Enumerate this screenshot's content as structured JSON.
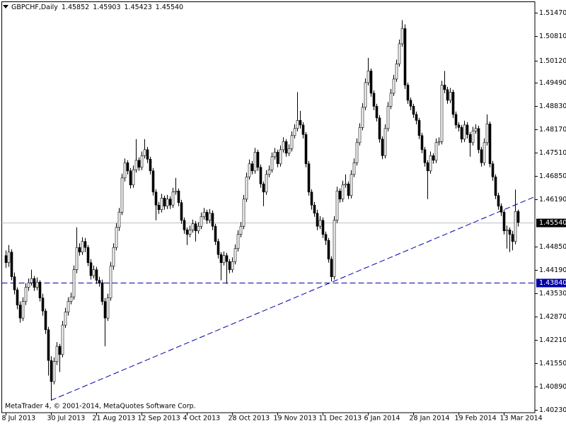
{
  "chart_data": {
    "type": "candlestick",
    "symbol": "GBPCHF,Daily",
    "last_value_labels": [
      "1.45852",
      "1.45903",
      "1.45423",
      "1.45540"
    ],
    "footer": "MetaTrader 4, © 2001-2014, MetaQuotes Software Corp.",
    "categories": [
      "8 Jul 2013",
      null,
      null,
      null,
      null,
      null,
      null,
      null,
      null,
      null,
      null,
      null,
      null,
      null,
      null,
      null,
      "30 Jul 2013",
      null,
      null,
      null,
      null,
      null,
      null,
      null,
      null,
      null,
      null,
      null,
      null,
      null,
      null,
      null,
      "21 Aug 2013",
      null,
      null,
      null,
      null,
      null,
      null,
      null,
      null,
      null,
      null,
      null,
      null,
      null,
      null,
      null,
      "12 Sep 2013",
      null,
      null,
      null,
      null,
      null,
      null,
      null,
      null,
      null,
      null,
      null,
      null,
      null,
      null,
      null,
      "4 Oct 2013",
      null,
      null,
      null,
      null,
      null,
      null,
      null,
      null,
      null,
      null,
      null,
      null,
      null,
      null,
      null,
      "28 Oct 2013",
      null,
      null,
      null,
      null,
      null,
      null,
      null,
      null,
      null,
      null,
      null,
      null,
      null,
      null,
      null,
      "19 Nov 2013",
      null,
      null,
      null,
      null,
      null,
      null,
      null,
      null,
      null,
      null,
      null,
      null,
      null,
      null,
      null,
      "11 Dec 2013",
      null,
      null,
      null,
      null,
      null,
      null,
      null,
      null,
      null,
      null,
      null,
      null,
      null,
      null,
      null,
      "6 Jan 2014",
      null,
      null,
      null,
      null,
      null,
      null,
      null,
      null,
      null,
      null,
      null,
      null,
      null,
      null,
      null,
      "28 Jan 2014",
      null,
      null,
      null,
      null,
      null,
      null,
      null,
      null,
      null,
      null,
      null,
      null,
      null,
      null,
      null,
      "19 Feb 2014",
      null,
      null,
      null,
      null,
      null,
      null,
      null,
      null,
      null,
      null,
      null,
      null,
      null,
      null,
      null,
      "13 Mar 2014",
      null,
      null,
      null,
      null,
      null
    ],
    "ohlc": [
      [
        1.446,
        1.4475,
        1.4425,
        1.444
      ],
      [
        1.444,
        1.449,
        1.4428,
        1.447
      ],
      [
        1.447,
        1.4478,
        1.439,
        1.44
      ],
      [
        1.44,
        1.4412,
        1.435,
        1.4363
      ],
      [
        1.4363,
        1.437,
        1.4308,
        1.432
      ],
      [
        1.432,
        1.433,
        1.427,
        1.4283
      ],
      [
        1.4283,
        1.4342,
        1.4275,
        1.433
      ],
      [
        1.433,
        1.4382,
        1.432,
        1.437
      ],
      [
        1.437,
        1.4395,
        1.436,
        1.4383
      ],
      [
        1.4383,
        1.442,
        1.4375,
        1.4395
      ],
      [
        1.4395,
        1.4402,
        1.436,
        1.437
      ],
      [
        1.437,
        1.4398,
        1.4362,
        1.4385
      ],
      [
        1.4385,
        1.439,
        1.433,
        1.434
      ],
      [
        1.434,
        1.4352,
        1.429,
        1.4303
      ],
      [
        1.4303,
        1.431,
        1.4238,
        1.425
      ],
      [
        1.425,
        1.4258,
        1.412,
        1.4163
      ],
      [
        1.4163,
        1.4175,
        1.405,
        1.4103
      ],
      [
        1.4103,
        1.4172,
        1.4095,
        1.416
      ],
      [
        1.416,
        1.4215,
        1.415,
        1.4203
      ],
      [
        1.4203,
        1.421,
        1.413,
        1.418
      ],
      [
        1.418,
        1.4275,
        1.4172,
        1.4263
      ],
      [
        1.4263,
        1.4312,
        1.4255,
        1.43
      ],
      [
        1.43,
        1.4342,
        1.429,
        1.433
      ],
      [
        1.433,
        1.4355,
        1.4322,
        1.4343
      ],
      [
        1.4343,
        1.4432,
        1.4335,
        1.442
      ],
      [
        1.442,
        1.454,
        1.441,
        1.4483
      ],
      [
        1.4483,
        1.4495,
        1.446,
        1.447
      ],
      [
        1.447,
        1.4512,
        1.4462,
        1.45
      ],
      [
        1.45,
        1.451,
        1.447,
        1.4483
      ],
      [
        1.4483,
        1.449,
        1.443,
        1.444
      ],
      [
        1.444,
        1.445,
        1.4392,
        1.4403
      ],
      [
        1.4403,
        1.4432,
        1.4395,
        1.442
      ],
      [
        1.442,
        1.4428,
        1.438,
        1.439
      ],
      [
        1.439,
        1.44,
        1.4372,
        1.4383
      ],
      [
        1.4383,
        1.4392,
        1.432,
        1.433
      ],
      [
        1.433,
        1.434,
        1.4203,
        1.4283
      ],
      [
        1.4283,
        1.4352,
        1.4275,
        1.434
      ],
      [
        1.434,
        1.4442,
        1.4332,
        1.443
      ],
      [
        1.443,
        1.4495,
        1.442,
        1.4483
      ],
      [
        1.4483,
        1.4552,
        1.4475,
        1.454
      ],
      [
        1.454,
        1.4595,
        1.453,
        1.4583
      ],
      [
        1.4583,
        1.4692,
        1.4575,
        1.468
      ],
      [
        1.468,
        1.4735,
        1.467,
        1.4723
      ],
      [
        1.4723,
        1.473,
        1.469,
        1.47
      ],
      [
        1.47,
        1.4708,
        1.465,
        1.466
      ],
      [
        1.466,
        1.4715,
        1.4652,
        1.4703
      ],
      [
        1.4703,
        1.479,
        1.4695,
        1.473
      ],
      [
        1.473,
        1.4738,
        1.47,
        1.471
      ],
      [
        1.471,
        1.4755,
        1.4702,
        1.4743
      ],
      [
        1.4743,
        1.479,
        1.4735,
        1.476
      ],
      [
        1.476,
        1.4768,
        1.4722,
        1.4733
      ],
      [
        1.4733,
        1.474,
        1.469,
        1.47
      ],
      [
        1.47,
        1.4708,
        1.463,
        1.464
      ],
      [
        1.464,
        1.4648,
        1.456,
        1.4603
      ],
      [
        1.4603,
        1.4612,
        1.4578,
        1.459
      ],
      [
        1.459,
        1.4635,
        1.4582,
        1.4623
      ],
      [
        1.4623,
        1.463,
        1.459,
        1.46
      ],
      [
        1.46,
        1.4632,
        1.4592,
        1.462
      ],
      [
        1.462,
        1.4628,
        1.4592,
        1.4603
      ],
      [
        1.4603,
        1.4652,
        1.4595,
        1.464
      ],
      [
        1.464,
        1.468,
        1.4632,
        1.4643
      ],
      [
        1.4643,
        1.465,
        1.46,
        1.461
      ],
      [
        1.461,
        1.4618,
        1.455,
        1.456
      ],
      [
        1.456,
        1.4568,
        1.4522,
        1.4533
      ],
      [
        1.4533,
        1.454,
        1.449,
        1.452
      ],
      [
        1.452,
        1.4545,
        1.4512,
        1.4533
      ],
      [
        1.4533,
        1.4562,
        1.4525,
        1.455
      ],
      [
        1.455,
        1.4558,
        1.45,
        1.453
      ],
      [
        1.453,
        1.4555,
        1.4522,
        1.4543
      ],
      [
        1.4543,
        1.4582,
        1.4535,
        1.457
      ],
      [
        1.457,
        1.4595,
        1.4562,
        1.4583
      ],
      [
        1.4583,
        1.459,
        1.455,
        1.456
      ],
      [
        1.456,
        1.4592,
        1.4552,
        1.458
      ],
      [
        1.458,
        1.4588,
        1.4532,
        1.4543
      ],
      [
        1.4543,
        1.455,
        1.449,
        1.45
      ],
      [
        1.45,
        1.4508,
        1.4452,
        1.4463
      ],
      [
        1.4463,
        1.447,
        1.439,
        1.444
      ],
      [
        1.444,
        1.4472,
        1.4432,
        1.446
      ],
      [
        1.446,
        1.4468,
        1.438,
        1.4443
      ],
      [
        1.4443,
        1.445,
        1.441,
        1.442
      ],
      [
        1.442,
        1.4455,
        1.4412,
        1.4443
      ],
      [
        1.4443,
        1.4492,
        1.4435,
        1.448
      ],
      [
        1.448,
        1.4532,
        1.4472,
        1.452
      ],
      [
        1.452,
        1.4555,
        1.4512,
        1.4543
      ],
      [
        1.4543,
        1.4632,
        1.4535,
        1.462
      ],
      [
        1.462,
        1.4695,
        1.4612,
        1.4683
      ],
      [
        1.4683,
        1.4732,
        1.4675,
        1.472
      ],
      [
        1.472,
        1.4728,
        1.469,
        1.47
      ],
      [
        1.47,
        1.4765,
        1.4692,
        1.4753
      ],
      [
        1.4753,
        1.476,
        1.47,
        1.471
      ],
      [
        1.471,
        1.4718,
        1.4652,
        1.4663
      ],
      [
        1.4663,
        1.467,
        1.46,
        1.464
      ],
      [
        1.464,
        1.4702,
        1.4632,
        1.469
      ],
      [
        1.469,
        1.4715,
        1.4682,
        1.4703
      ],
      [
        1.4703,
        1.4752,
        1.4695,
        1.474
      ],
      [
        1.474,
        1.4765,
        1.4732,
        1.4753
      ],
      [
        1.4753,
        1.476,
        1.471,
        1.472
      ],
      [
        1.472,
        1.4772,
        1.4712,
        1.476
      ],
      [
        1.476,
        1.4795,
        1.4752,
        1.4783
      ],
      [
        1.4783,
        1.479,
        1.474,
        1.475
      ],
      [
        1.475,
        1.4775,
        1.4742,
        1.4763
      ],
      [
        1.4763,
        1.4812,
        1.4755,
        1.48
      ],
      [
        1.48,
        1.4832,
        1.4792,
        1.482
      ],
      [
        1.482,
        1.4923,
        1.4812,
        1.4843
      ],
      [
        1.4843,
        1.487,
        1.482,
        1.483
      ],
      [
        1.483,
        1.4838,
        1.4792,
        1.4803
      ],
      [
        1.4803,
        1.481,
        1.471,
        1.472
      ],
      [
        1.472,
        1.4728,
        1.463,
        1.464
      ],
      [
        1.464,
        1.4648,
        1.459,
        1.4603
      ],
      [
        1.4603,
        1.4612,
        1.457,
        1.458
      ],
      [
        1.458,
        1.459,
        1.4532,
        1.4543
      ],
      [
        1.4543,
        1.4572,
        1.4535,
        1.456
      ],
      [
        1.456,
        1.4568,
        1.451,
        1.452
      ],
      [
        1.452,
        1.4528,
        1.449,
        1.4503
      ],
      [
        1.4503,
        1.451,
        1.444,
        1.445
      ],
      [
        1.445,
        1.4458,
        1.4387,
        1.44
      ],
      [
        1.44,
        1.4572,
        1.4392,
        1.456
      ],
      [
        1.456,
        1.4655,
        1.4552,
        1.4643
      ],
      [
        1.4643,
        1.465,
        1.461,
        1.462
      ],
      [
        1.462,
        1.4672,
        1.4612,
        1.466
      ],
      [
        1.466,
        1.469,
        1.4652,
        1.4663
      ],
      [
        1.4663,
        1.467,
        1.462,
        1.463
      ],
      [
        1.463,
        1.4702,
        1.4622,
        1.469
      ],
      [
        1.469,
        1.4735,
        1.4682,
        1.4723
      ],
      [
        1.4723,
        1.4792,
        1.4715,
        1.478
      ],
      [
        1.478,
        1.4835,
        1.4772,
        1.4823
      ],
      [
        1.4823,
        1.4892,
        1.4815,
        1.488
      ],
      [
        1.488,
        1.4962,
        1.4872,
        1.495
      ],
      [
        1.495,
        1.502,
        1.4942,
        1.4983
      ],
      [
        1.4983,
        1.499,
        1.491,
        1.492
      ],
      [
        1.492,
        1.4928,
        1.4872,
        1.4883
      ],
      [
        1.4883,
        1.489,
        1.484,
        1.485
      ],
      [
        1.485,
        1.4858,
        1.478,
        1.479
      ],
      [
        1.479,
        1.4798,
        1.4733,
        1.4743
      ],
      [
        1.4743,
        1.4832,
        1.4735,
        1.482
      ],
      [
        1.482,
        1.4895,
        1.4812,
        1.4883
      ],
      [
        1.4883,
        1.4932,
        1.4875,
        1.492
      ],
      [
        1.492,
        1.4972,
        1.4912,
        1.496
      ],
      [
        1.496,
        1.5015,
        1.4952,
        1.5003
      ],
      [
        1.5003,
        1.5072,
        1.4995,
        1.506
      ],
      [
        1.506,
        1.5127,
        1.5052,
        1.5103
      ],
      [
        1.5103,
        1.5115,
        1.4932,
        1.4943
      ],
      [
        1.4943,
        1.495,
        1.489,
        1.49
      ],
      [
        1.49,
        1.4908,
        1.4872,
        1.4883
      ],
      [
        1.4883,
        1.489,
        1.485,
        1.486
      ],
      [
        1.486,
        1.4868,
        1.4832,
        1.4843
      ],
      [
        1.4843,
        1.485,
        1.479,
        1.48
      ],
      [
        1.48,
        1.4808,
        1.475,
        1.476
      ],
      [
        1.476,
        1.4768,
        1.4712,
        1.4723
      ],
      [
        1.4723,
        1.473,
        1.462,
        1.47
      ],
      [
        1.47,
        1.4755,
        1.4692,
        1.4743
      ],
      [
        1.4743,
        1.475,
        1.472,
        1.473
      ],
      [
        1.473,
        1.4792,
        1.4722,
        1.478
      ],
      [
        1.478,
        1.4795,
        1.4772,
        1.4783
      ],
      [
        1.4783,
        1.4955,
        1.4775,
        1.4943
      ],
      [
        1.4943,
        1.4983,
        1.492,
        1.493
      ],
      [
        1.493,
        1.4938,
        1.489,
        1.49
      ],
      [
        1.49,
        1.4935,
        1.4892,
        1.4923
      ],
      [
        1.4923,
        1.493,
        1.485,
        1.486
      ],
      [
        1.486,
        1.4868,
        1.482,
        1.483
      ],
      [
        1.483,
        1.4838,
        1.4812,
        1.4823
      ],
      [
        1.4823,
        1.483,
        1.478,
        1.479
      ],
      [
        1.479,
        1.4842,
        1.4782,
        1.483
      ],
      [
        1.483,
        1.4838,
        1.4792,
        1.4803
      ],
      [
        1.4803,
        1.481,
        1.474,
        1.478
      ],
      [
        1.478,
        1.4825,
        1.4772,
        1.4813
      ],
      [
        1.4813,
        1.4832,
        1.4805,
        1.482
      ],
      [
        1.482,
        1.4828,
        1.475,
        1.476
      ],
      [
        1.476,
        1.4768,
        1.4712,
        1.4723
      ],
      [
        1.4723,
        1.4792,
        1.4715,
        1.478
      ],
      [
        1.478,
        1.486,
        1.4772,
        1.4833
      ],
      [
        1.4833,
        1.484,
        1.471,
        1.472
      ],
      [
        1.472,
        1.4728,
        1.4672,
        1.4683
      ],
      [
        1.4683,
        1.469,
        1.462,
        1.463
      ],
      [
        1.463,
        1.4638,
        1.459,
        1.46
      ],
      [
        1.46,
        1.4608,
        1.4572,
        1.4583
      ],
      [
        1.4583,
        1.459,
        1.452,
        1.453
      ],
      [
        1.453,
        1.4545,
        1.448,
        1.4533
      ],
      [
        1.4533,
        1.454,
        1.447,
        1.452
      ],
      [
        1.452,
        1.453,
        1.4475,
        1.45
      ],
      [
        1.45,
        1.4647,
        1.4492,
        1.4585
      ],
      [
        1.45852,
        1.45903,
        1.45423,
        1.4554
      ]
    ],
    "ylim": [
      1.4015,
      1.5179
    ],
    "yticks": [
      {
        "value": 1.5147,
        "label": "1.51470"
      },
      {
        "value": 1.5081,
        "label": "1.50810"
      },
      {
        "value": 1.5012,
        "label": "1.50120"
      },
      {
        "value": 1.4949,
        "label": "1.49490"
      },
      {
        "value": 1.4883,
        "label": "1.48830"
      },
      {
        "value": 1.4817,
        "label": "1.48170"
      },
      {
        "value": 1.4751,
        "label": "1.47510"
      },
      {
        "value": 1.4685,
        "label": "1.46850"
      },
      {
        "value": 1.4619,
        "label": "1.46190"
      },
      {
        "value": 1.4485,
        "label": "1.44850"
      },
      {
        "value": 1.4419,
        "label": "1.44190"
      },
      {
        "value": 1.4353,
        "label": "1.43530"
      },
      {
        "value": 1.4287,
        "label": "1.42870"
      },
      {
        "value": 1.4221,
        "label": "1.42210"
      },
      {
        "value": 1.4155,
        "label": "1.41550"
      },
      {
        "value": 1.4089,
        "label": "1.40890"
      },
      {
        "value": 1.4023,
        "label": "1.40230"
      }
    ],
    "grid": false,
    "color": "#000000",
    "current_price": {
      "value": 1.4554,
      "label": "1.45540",
      "color": "#c0c0c0"
    },
    "hline": {
      "value": 1.4384,
      "label": "1.43840",
      "color": "#0000aa"
    },
    "trendline": [
      [
        16,
        1.405
      ],
      [
        115,
        1.4384
      ]
    ],
    "trendline_color": "#0000aa"
  }
}
